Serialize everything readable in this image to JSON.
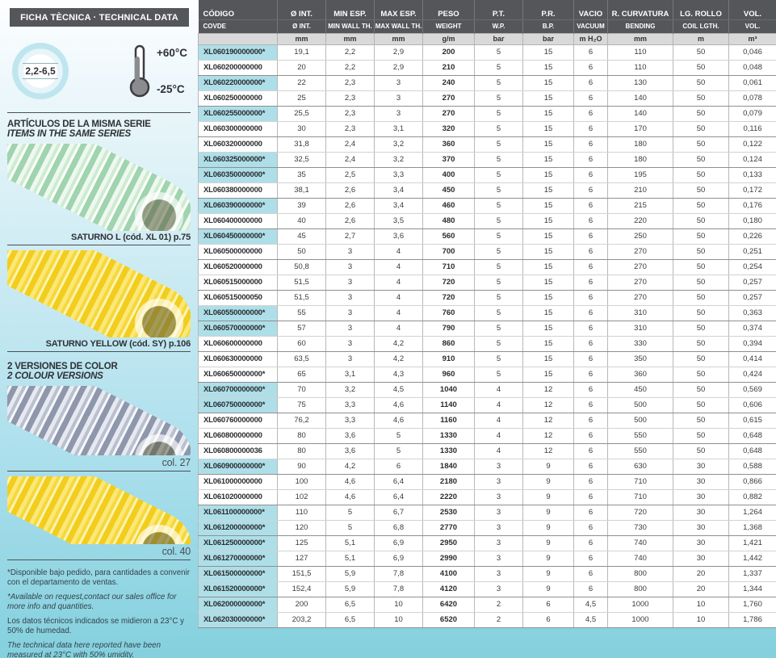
{
  "sidebar": {
    "title": "FICHA TÈCNICA · TECHNICAL DATA",
    "badge": "2,2-6,5",
    "temp_high": "+60°C",
    "temp_low": "-25°C",
    "series_heading_es": "ARTÍCULOS DE LA MISMA SERIE",
    "series_heading_en": "ITEMS IN THE SAME SERIES",
    "products": [
      {
        "caption": "SATURNO L  (cód. XL 01) p.75"
      },
      {
        "caption": "SATURNO YELLOW  (cód. SY) p.106"
      }
    ],
    "versions_heading_es": "2 VERSIONES DE COLOR",
    "versions_heading_en": "2 COLOUR VERSIONS",
    "colors": [
      {
        "caption": "col. 27"
      },
      {
        "caption": "col. 40"
      }
    ],
    "footnote_es": "*Disponible bajo pedido, para cantidades a convenir con el departamento de ventas.",
    "footnote_en": "*Available on request,contact our sales office for more info and quantities.",
    "note_es": "Los datos técnicos indicados se midieron a 23°C y 50% de humedad.",
    "note_en": "The technical data here reported have been measured at 23°C with 50% umidity."
  },
  "colors": {
    "header_bar": "#55565a",
    "highlight_cell": "#aedfe9",
    "page_bottom": "#84d0de"
  },
  "table": {
    "columns": [
      {
        "es": "CÓDIGO",
        "en": "COVDE",
        "unit": ""
      },
      {
        "es": "Ø INT.",
        "en": "Ø INT.",
        "unit": "mm"
      },
      {
        "es": "MIN ESP.",
        "en": "MIN WALL TH.",
        "unit": "mm"
      },
      {
        "es": "MAX ESP.",
        "en": "MAX WALL TH.",
        "unit": "mm"
      },
      {
        "es": "PESO",
        "en": "WEIGHT",
        "unit": "g/m"
      },
      {
        "es": "P.T.",
        "en": "W.P.",
        "unit": "bar"
      },
      {
        "es": "P.R.",
        "en": "B.P.",
        "unit": "bar"
      },
      {
        "es": "VACIO",
        "en": "VACUUM",
        "unit": "m H₂O"
      },
      {
        "es": "R. CURVATURA",
        "en": "BENDING",
        "unit": "mm"
      },
      {
        "es": "LG. ROLLO",
        "en": "COIL LGTH.",
        "unit": "m"
      },
      {
        "es": "VOL.",
        "en": "VOL.",
        "unit": "m³"
      }
    ],
    "rows": [
      {
        "code": "XL060190000000*",
        "highlighted": true,
        "values": [
          "19,1",
          "2,2",
          "2,9",
          "200",
          "5",
          "15",
          "6",
          "110",
          "50",
          "0,046"
        ]
      },
      {
        "code": "XL060200000000",
        "highlighted": false,
        "values": [
          "20",
          "2,2",
          "2,9",
          "210",
          "5",
          "15",
          "6",
          "110",
          "50",
          "0,048"
        ]
      },
      {
        "code": "XL060220000000*",
        "highlighted": true,
        "values": [
          "22",
          "2,3",
          "3",
          "240",
          "5",
          "15",
          "6",
          "130",
          "50",
          "0,061"
        ]
      },
      {
        "code": "XL060250000000",
        "highlighted": false,
        "values": [
          "25",
          "2,3",
          "3",
          "270",
          "5",
          "15",
          "6",
          "140",
          "50",
          "0,078"
        ]
      },
      {
        "code": "XL060255000000*",
        "highlighted": true,
        "values": [
          "25,5",
          "2,3",
          "3",
          "270",
          "5",
          "15",
          "6",
          "140",
          "50",
          "0,079"
        ]
      },
      {
        "code": "XL060300000000",
        "highlighted": false,
        "values": [
          "30",
          "2,3",
          "3,1",
          "320",
          "5",
          "15",
          "6",
          "170",
          "50",
          "0,116"
        ]
      },
      {
        "code": "XL060320000000",
        "highlighted": false,
        "values": [
          "31,8",
          "2,4",
          "3,2",
          "360",
          "5",
          "15",
          "6",
          "180",
          "50",
          "0,122"
        ]
      },
      {
        "code": "XL060325000000*",
        "highlighted": true,
        "values": [
          "32,5",
          "2,4",
          "3,2",
          "370",
          "5",
          "15",
          "6",
          "180",
          "50",
          "0,124"
        ]
      },
      {
        "code": "XL060350000000*",
        "highlighted": true,
        "values": [
          "35",
          "2,5",
          "3,3",
          "400",
          "5",
          "15",
          "6",
          "195",
          "50",
          "0,133"
        ]
      },
      {
        "code": "XL060380000000",
        "highlighted": false,
        "values": [
          "38,1",
          "2,6",
          "3,4",
          "450",
          "5",
          "15",
          "6",
          "210",
          "50",
          "0,172"
        ]
      },
      {
        "code": "XL060390000000*",
        "highlighted": true,
        "values": [
          "39",
          "2,6",
          "3,4",
          "460",
          "5",
          "15",
          "6",
          "215",
          "50",
          "0,176"
        ]
      },
      {
        "code": "XL060400000000",
        "highlighted": false,
        "values": [
          "40",
          "2,6",
          "3,5",
          "480",
          "5",
          "15",
          "6",
          "220",
          "50",
          "0,180"
        ]
      },
      {
        "code": "XL060450000000*",
        "highlighted": true,
        "values": [
          "45",
          "2,7",
          "3,6",
          "560",
          "5",
          "15",
          "6",
          "250",
          "50",
          "0,226"
        ]
      },
      {
        "code": "XL060500000000",
        "highlighted": false,
        "values": [
          "50",
          "3",
          "4",
          "700",
          "5",
          "15",
          "6",
          "270",
          "50",
          "0,251"
        ]
      },
      {
        "code": "XL060520000000",
        "highlighted": false,
        "values": [
          "50,8",
          "3",
          "4",
          "710",
          "5",
          "15",
          "6",
          "270",
          "50",
          "0,254"
        ]
      },
      {
        "code": "XL060515000000",
        "highlighted": false,
        "values": [
          "51,5",
          "3",
          "4",
          "720",
          "5",
          "15",
          "6",
          "270",
          "50",
          "0,257"
        ]
      },
      {
        "code": "XL060515000050",
        "highlighted": false,
        "values": [
          "51,5",
          "3",
          "4",
          "720",
          "5",
          "15",
          "6",
          "270",
          "50",
          "0,257"
        ]
      },
      {
        "code": "XL060550000000*",
        "highlighted": true,
        "values": [
          "55",
          "3",
          "4",
          "760",
          "5",
          "15",
          "6",
          "310",
          "50",
          "0,363"
        ]
      },
      {
        "code": "XL060570000000*",
        "highlighted": true,
        "values": [
          "57",
          "3",
          "4",
          "790",
          "5",
          "15",
          "6",
          "310",
          "50",
          "0,374"
        ]
      },
      {
        "code": "XL060600000000",
        "highlighted": false,
        "values": [
          "60",
          "3",
          "4,2",
          "860",
          "5",
          "15",
          "6",
          "330",
          "50",
          "0,394"
        ]
      },
      {
        "code": "XL060630000000",
        "highlighted": false,
        "values": [
          "63,5",
          "3",
          "4,2",
          "910",
          "5",
          "15",
          "6",
          "350",
          "50",
          "0,414"
        ]
      },
      {
        "code": "XL060650000000*",
        "highlighted": false,
        "values": [
          "65",
          "3,1",
          "4,3",
          "960",
          "5",
          "15",
          "6",
          "360",
          "50",
          "0,424"
        ]
      },
      {
        "code": "XL060700000000*",
        "highlighted": true,
        "values": [
          "70",
          "3,2",
          "4,5",
          "1040",
          "4",
          "12",
          "6",
          "450",
          "50",
          "0,569"
        ]
      },
      {
        "code": "XL060750000000*",
        "highlighted": true,
        "values": [
          "75",
          "3,3",
          "4,6",
          "1140",
          "4",
          "12",
          "6",
          "500",
          "50",
          "0,606"
        ]
      },
      {
        "code": "XL060760000000",
        "highlighted": false,
        "values": [
          "76,2",
          "3,3",
          "4,6",
          "1160",
          "4",
          "12",
          "6",
          "500",
          "50",
          "0,615"
        ]
      },
      {
        "code": "XL060800000000",
        "highlighted": false,
        "values": [
          "80",
          "3,6",
          "5",
          "1330",
          "4",
          "12",
          "6",
          "550",
          "50",
          "0,648"
        ]
      },
      {
        "code": "XL060800000036",
        "highlighted": false,
        "values": [
          "80",
          "3,6",
          "5",
          "1330",
          "4",
          "12",
          "6",
          "550",
          "50",
          "0,648"
        ]
      },
      {
        "code": "XL060900000000*",
        "highlighted": true,
        "values": [
          "90",
          "4,2",
          "6",
          "1840",
          "3",
          "9",
          "6",
          "630",
          "30",
          "0,588"
        ]
      },
      {
        "code": "XL061000000000",
        "highlighted": false,
        "values": [
          "100",
          "4,6",
          "6,4",
          "2180",
          "3",
          "9",
          "6",
          "710",
          "30",
          "0,866"
        ]
      },
      {
        "code": "XL061020000000",
        "highlighted": false,
        "values": [
          "102",
          "4,6",
          "6,4",
          "2220",
          "3",
          "9",
          "6",
          "710",
          "30",
          "0,882"
        ]
      },
      {
        "code": "XL061100000000*",
        "highlighted": true,
        "values": [
          "110",
          "5",
          "6,7",
          "2530",
          "3",
          "9",
          "6",
          "720",
          "30",
          "1,264"
        ]
      },
      {
        "code": "XL061200000000*",
        "highlighted": true,
        "values": [
          "120",
          "5",
          "6,8",
          "2770",
          "3",
          "9",
          "6",
          "730",
          "30",
          "1,368"
        ]
      },
      {
        "code": "XL061250000000*",
        "highlighted": true,
        "values": [
          "125",
          "5,1",
          "6,9",
          "2950",
          "3",
          "9",
          "6",
          "740",
          "30",
          "1,421"
        ]
      },
      {
        "code": "XL061270000000*",
        "highlighted": true,
        "values": [
          "127",
          "5,1",
          "6,9",
          "2990",
          "3",
          "9",
          "6",
          "740",
          "30",
          "1,442"
        ]
      },
      {
        "code": "XL061500000000*",
        "highlighted": true,
        "values": [
          "151,5",
          "5,9",
          "7,8",
          "4100",
          "3",
          "9",
          "6",
          "800",
          "20",
          "1,337"
        ]
      },
      {
        "code": "XL061520000000*",
        "highlighted": true,
        "values": [
          "152,4",
          "5,9",
          "7,8",
          "4120",
          "3",
          "9",
          "6",
          "800",
          "20",
          "1,344"
        ]
      },
      {
        "code": "XL062000000000*",
        "highlighted": true,
        "values": [
          "200",
          "6,5",
          "10",
          "6420",
          "2",
          "6",
          "4,5",
          "1000",
          "10",
          "1,760"
        ]
      },
      {
        "code": "XL062030000000*",
        "highlighted": true,
        "values": [
          "203,2",
          "6,5",
          "10",
          "6520",
          "2",
          "6",
          "4,5",
          "1000",
          "10",
          "1,786"
        ]
      }
    ]
  }
}
